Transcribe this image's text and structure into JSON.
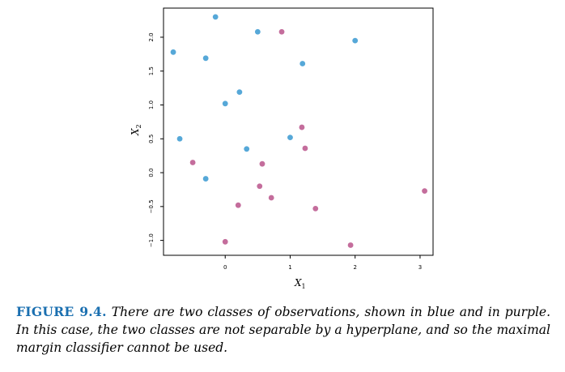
{
  "caption": {
    "label": "FIGURE 9.4.",
    "text": "There are two classes of observations, shown in blue and in purple. In this case, the two classes are not separable by a hyperplane, and so the maximal margin classifier cannot be used."
  },
  "chart_data": {
    "type": "scatter",
    "title": "",
    "xlabel": "X",
    "xlabel_sub": "1",
    "ylabel": "X",
    "ylabel_sub": "2",
    "xlim": [
      -0.95,
      3.2
    ],
    "ylim": [
      -1.22,
      2.43
    ],
    "x_ticks": [
      0,
      1,
      2,
      3
    ],
    "y_ticks": [
      -1.0,
      -0.5,
      0.0,
      0.5,
      1.0,
      1.5,
      2.0
    ],
    "x_tick_labels": [
      "0",
      "1",
      "2",
      "3"
    ],
    "y_tick_labels": [
      "−1.0",
      "−0.5",
      "0.0",
      "0.5",
      "1.0",
      "1.5",
      "2.0"
    ],
    "grid": false,
    "series": [
      {
        "color": "#56a8d8",
        "x": [
          -0.15,
          0.5,
          -0.8,
          -0.3,
          2.0,
          1.19,
          0.22,
          0.0,
          -0.7,
          0.33,
          1.0,
          -0.3
        ],
        "y": [
          2.3,
          2.08,
          1.78,
          1.69,
          1.95,
          1.61,
          1.19,
          1.02,
          0.5,
          0.35,
          0.52,
          -0.09
        ]
      },
      {
        "color": "#c46d9c",
        "x": [
          0.87,
          1.18,
          1.23,
          -0.5,
          0.57,
          0.53,
          0.71,
          0.2,
          1.39,
          0.0,
          1.93,
          3.07
        ],
        "y": [
          2.08,
          0.67,
          0.36,
          0.15,
          0.13,
          -0.2,
          -0.37,
          -0.48,
          -0.53,
          -1.02,
          -1.07,
          -0.27
        ]
      }
    ]
  }
}
